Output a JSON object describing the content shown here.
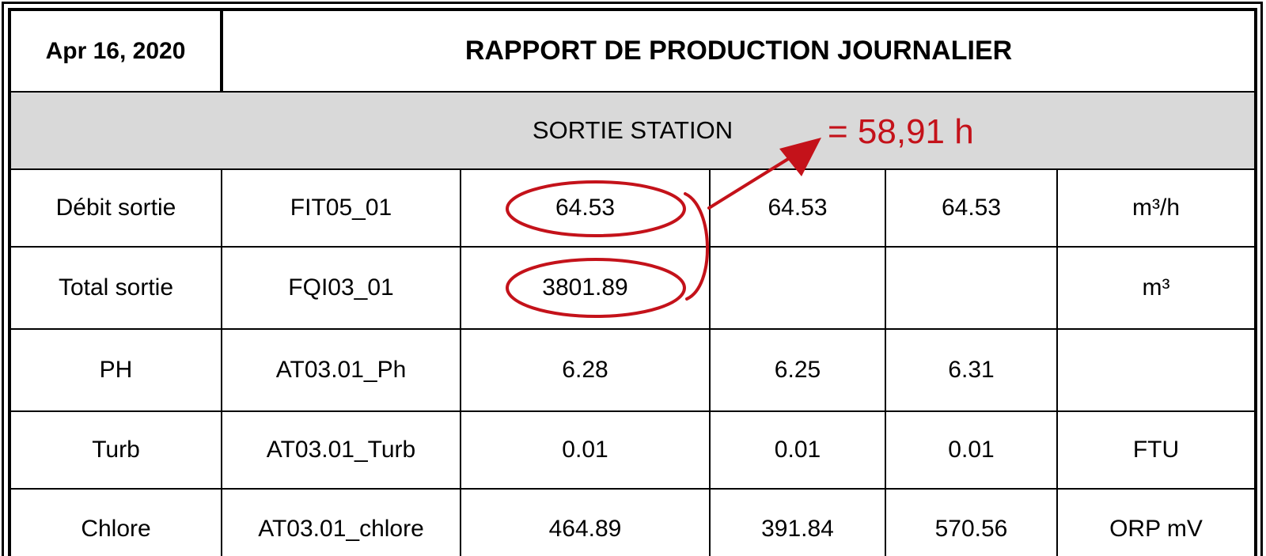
{
  "header": {
    "date": "Apr 16, 2020",
    "title": "RAPPORT DE PRODUCTION JOURNALIER"
  },
  "section": {
    "title": "SORTIE STATION"
  },
  "rows": [
    {
      "label": "Débit sortie",
      "tag": "FIT05_01",
      "v1": "64.53",
      "v2": "64.53",
      "v3": "64.53",
      "unit": "m³/h"
    },
    {
      "label": "Total sortie",
      "tag": "FQI03_01",
      "v1": "3801.89",
      "v2": "",
      "v3": "",
      "unit": "m³"
    },
    {
      "label": "PH",
      "tag": "AT03.01_Ph",
      "v1": "6.28",
      "v2": "6.25",
      "v3": "6.31",
      "unit": ""
    },
    {
      "label": "Turb",
      "tag": "AT03.01_Turb",
      "v1": "0.01",
      "v2": "0.01",
      "v3": "0.01",
      "unit": "FTU"
    },
    {
      "label": "Chlore",
      "tag": "AT03.01_chlore",
      "v1": "464.89",
      "v2": "391.84",
      "v3": "570.56",
      "unit": "ORP mV"
    }
  ],
  "annotation": {
    "text": "= 58,91 h",
    "color": "#c4121a"
  }
}
